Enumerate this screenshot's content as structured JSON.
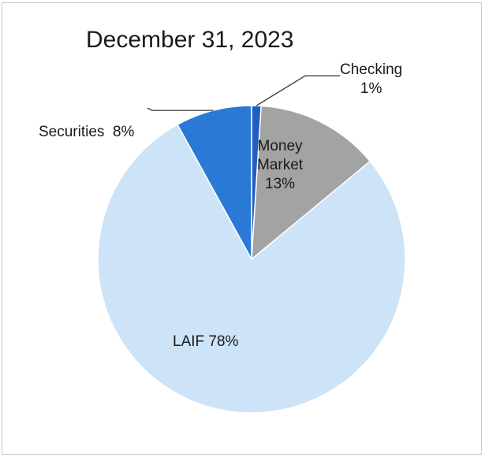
{
  "chart_data": {
    "type": "pie",
    "title": "December 31, 2023",
    "slices": [
      {
        "label_lines": [
          "Checking",
          "1%"
        ],
        "value": 1,
        "color": "#1f5fc0"
      },
      {
        "label_lines": [
          "Money",
          "Market",
          "13%"
        ],
        "value": 13,
        "color": "#a3a3a3"
      },
      {
        "label_lines": [
          "LAIF 78%"
        ],
        "value": 78,
        "color": "#cde3f7"
      },
      {
        "label_lines": [
          "Securities  8%"
        ],
        "value": 8,
        "color": "#2b79d6"
      }
    ],
    "start_angle_deg": 0,
    "direction": "clockwise",
    "legend": "none"
  }
}
